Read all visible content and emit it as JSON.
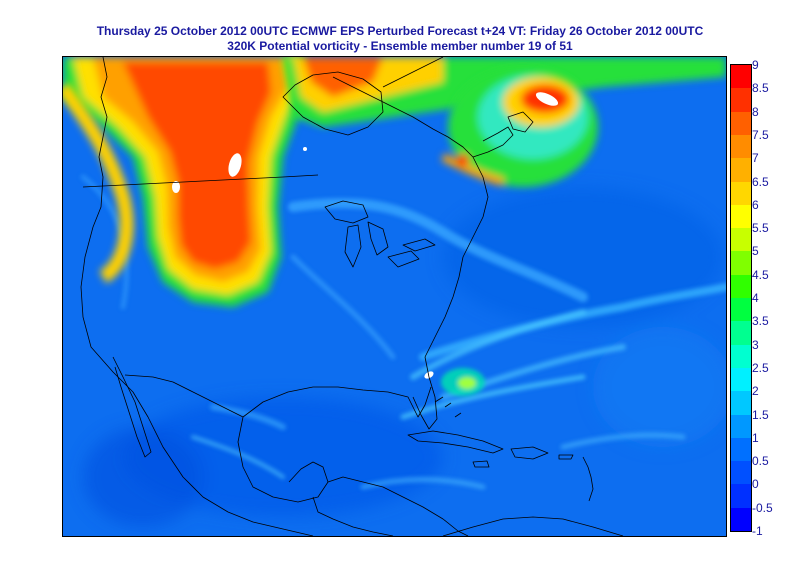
{
  "title": {
    "line1": "Thursday 25 October 2012 00UTC ECMWF   EPS Perturbed Forecast t+24 VT: Friday 26 October 2012 00UTC",
    "line2": "320K Potential vorticity  - Ensemble member number 19 of  51"
  },
  "legend": {
    "labels": [
      "9",
      "8.5",
      "8",
      "7.5",
      "7",
      "6.5",
      "6",
      "5.5",
      "5",
      "4.5",
      "4",
      "3.5",
      "3",
      "2.5",
      "2",
      "1.5",
      "1",
      "0.5",
      "0",
      "-0.5",
      "-1"
    ],
    "colors": [
      "#ff0000",
      "#ff3000",
      "#ff6000",
      "#ff8c00",
      "#ffb000",
      "#ffd700",
      "#ffff00",
      "#c8ff00",
      "#80ff00",
      "#30ff00",
      "#00ff40",
      "#00ff90",
      "#00ffd0",
      "#00f0ff",
      "#00c8ff",
      "#0098ff",
      "#0070ff",
      "#0050ff",
      "#0030ff",
      "#0000ff"
    ]
  },
  "map": {
    "field": "320K Potential vorticity",
    "background_color": "#0d6ef0",
    "coast_color": "#000000"
  }
}
